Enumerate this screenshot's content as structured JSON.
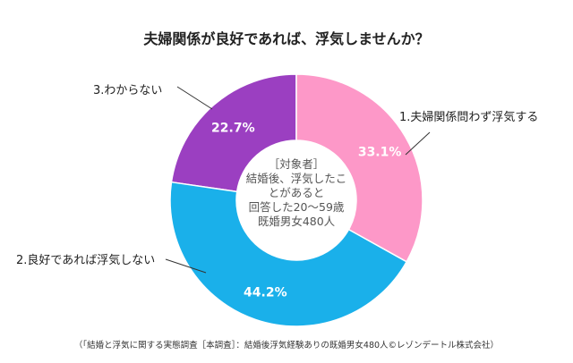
{
  "chart_data": {
    "type": "pie",
    "donut": true,
    "title": "夫婦関係が良好であれば、浮気しませんか？",
    "categories": [
      "1.夫婦関係問わず浮気する",
      "2.良好であれば浮気しない",
      "3.わからない"
    ],
    "values": [
      33.1,
      44.2,
      22.7
    ],
    "value_labels": [
      "33.1%",
      "44.2%",
      "22.7%"
    ],
    "colors": [
      "#fd98c8",
      "#1ab0ea",
      "#9b3fc1"
    ],
    "center_text": [
      "［対象者］",
      "結婚後、浮気したこ",
      "とがあると",
      "回答した20～59歳",
      "既婚男女480人"
    ],
    "source": "（「結婚と浮気に関する実態調査［本調査］：結婚後浮気経験ありの既婚男女480人©レゾンデートル株式会社）"
  }
}
